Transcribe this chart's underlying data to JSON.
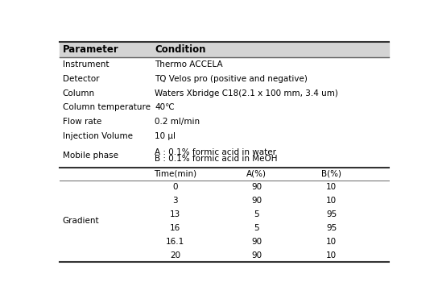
{
  "header": [
    "Parameter",
    "Condition"
  ],
  "header_bg": "#d4d4d4",
  "header_fontsize": 8.5,
  "body_fontsize": 7.5,
  "top_rows": [
    [
      "Instrument",
      "Thermo ACCELA"
    ],
    [
      "Detector",
      "TQ Velos pro (positive and negative)"
    ],
    [
      "Column",
      "Waters Xbridge C18(2.1 x 100 mm, 3.4 um)"
    ],
    [
      "Column temperature",
      "40℃"
    ],
    [
      "Flow rate",
      "0.2 ml/min"
    ],
    [
      "Injection Volume",
      "10 μl"
    ],
    [
      "Mobile phase",
      "A : 0.1% formic acid in water\nB : 0.1% formic acid in MeOH"
    ]
  ],
  "gradient_label": "Gradient",
  "gradient_header": [
    "Time(min)",
    "A(%)",
    "B(%)"
  ],
  "gradient_rows": [
    [
      "0",
      "90",
      "10"
    ],
    [
      "3",
      "90",
      "10"
    ],
    [
      "13",
      "5",
      "95"
    ],
    [
      "16",
      "5",
      "95"
    ],
    [
      "16.1",
      "90",
      "10"
    ],
    [
      "20",
      "90",
      "10"
    ]
  ],
  "figsize": [
    5.44,
    3.71
  ],
  "dpi": 100,
  "bg_color": "#ffffff",
  "line_color": "#666666",
  "heavy_line_color": "#333333"
}
